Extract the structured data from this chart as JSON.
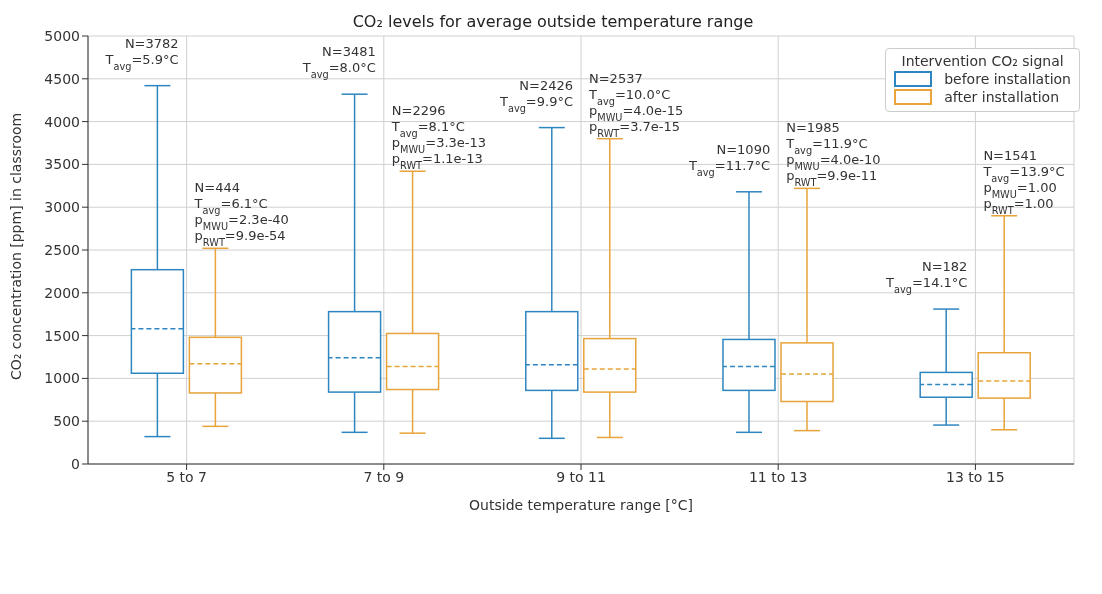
{
  "chart_data": {
    "type": "box",
    "title": "CO₂ levels for average outside temperature range",
    "xlabel": "Outside temperature range [°C]",
    "ylabel": "CO₂ concentration [ppm] in classroom",
    "legend_title": "Intervention CO₂ signal",
    "legend": "top right",
    "grid": true,
    "categories": [
      "5 to 7",
      "7 to 9",
      "9 to 11",
      "11 to 13",
      "13 to 15"
    ],
    "ylim": [
      0,
      5000
    ],
    "yticks": [
      0,
      500,
      1000,
      1500,
      2000,
      2500,
      3000,
      3500,
      4000,
      4500,
      5000
    ],
    "series": [
      {
        "name": "before installation",
        "color": "#2e86c1",
        "boxes": [
          {
            "low": 320,
            "q1": 1060,
            "median": 1580,
            "q3": 2270,
            "high": 4420
          },
          {
            "low": 370,
            "q1": 840,
            "median": 1240,
            "q3": 1780,
            "high": 4320
          },
          {
            "low": 300,
            "q1": 860,
            "median": 1160,
            "q3": 1780,
            "high": 3930
          },
          {
            "low": 370,
            "q1": 860,
            "median": 1140,
            "q3": 1455,
            "high": 3180
          },
          {
            "low": 455,
            "q1": 780,
            "median": 930,
            "q3": 1070,
            "high": 1810
          }
        ]
      },
      {
        "name": "after installation",
        "color": "#e8a33a",
        "boxes": [
          {
            "low": 440,
            "q1": 830,
            "median": 1170,
            "q3": 1480,
            "high": 2520
          },
          {
            "low": 360,
            "q1": 870,
            "median": 1140,
            "q3": 1525,
            "high": 3420
          },
          {
            "low": 310,
            "q1": 840,
            "median": 1110,
            "q3": 1465,
            "high": 3800
          },
          {
            "low": 390,
            "q1": 730,
            "median": 1050,
            "q3": 1415,
            "high": 3220
          },
          {
            "low": 400,
            "q1": 770,
            "median": 970,
            "q3": 1300,
            "high": 2900
          }
        ]
      }
    ],
    "annotations": [
      "N=3782\nT$_{avg}$=5.9°C",
      "N=444\nT$_{avg}$=6.1°C\np$_{MWU}$=2.3e-40\np$_{RWT}$=9.9e-54",
      "N=3481\nT$_{avg}$=8.0°C",
      "N=2296\nT$_{avg}$=8.1°C\np$_{MWU}$=3.3e-13\np$_{RWT}$=1.1e-13",
      "N=2426\nT$_{avg}$=9.9°C",
      "N=2537\nT$_{avg}$=10.0°C\np$_{MWU}$=4.0e-15\np$_{RWT}$=3.7e-15",
      "N=1090\nT$_{avg}$=11.7°C",
      "N=1985\nT$_{avg}$=11.9°C\np$_{MWU}$=4.0e-10\np$_{RWT}$=9.9e-11",
      "N=182\nT$_{avg}$=14.1°C",
      "N=1541\nT$_{avg}$=13.9°C\np$_{MWU}$=1.00\np$_{RWT}$=1.00"
    ]
  }
}
